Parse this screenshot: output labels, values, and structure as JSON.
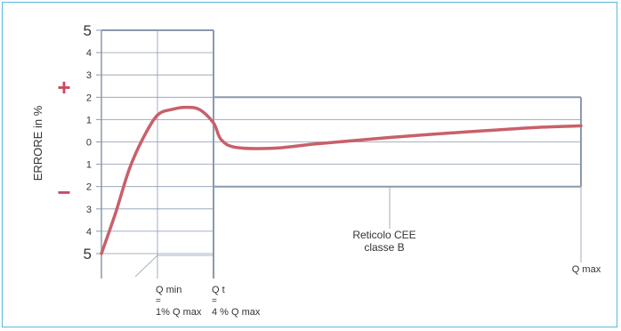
{
  "colors": {
    "frame_border": "#5bb8dc",
    "grid_line": "#8a9aad",
    "curve": "#c8606a",
    "plus_minus": "#c84a63",
    "text": "#333333"
  },
  "chart_data": {
    "type": "line",
    "ylabel": "ERRORE in %",
    "ylim": [
      -5,
      5
    ],
    "y_tick_labels": [
      {
        "value": 5,
        "label": "5"
      },
      {
        "value": 4,
        "label": "4"
      },
      {
        "value": 3,
        "label": "3"
      },
      {
        "value": 2,
        "label": "2"
      },
      {
        "value": 1,
        "label": "1"
      },
      {
        "value": 0,
        "label": "0"
      },
      {
        "value": -1,
        "label": "1"
      },
      {
        "value": -2,
        "label": "2"
      },
      {
        "value": -3,
        "label": "3"
      },
      {
        "value": -4,
        "label": "4"
      },
      {
        "value": -5,
        "label": "5"
      }
    ],
    "sign_plus": "+",
    "sign_minus": "−",
    "x_annotations": {
      "qmin": [
        "Q min",
        "=",
        "1% Q max"
      ],
      "qt": [
        "Q t",
        "=",
        "4 % Q max"
      ],
      "qmax": "Q max"
    },
    "envelope_note": [
      "Reticolo CEE",
      "classe B"
    ],
    "tolerance_band": {
      "low_flow": {
        "x_from": 0,
        "x_to": 4,
        "y_min": -5,
        "y_max": 5
      },
      "high_flow": {
        "x_from": 4,
        "x_to": 100,
        "y_min": -2,
        "y_max": 2
      }
    },
    "grid": true,
    "series": [
      {
        "points": [
          [
            0,
            -5.0
          ],
          [
            0.5,
            -3.2
          ],
          [
            1.0,
            -1.2
          ],
          [
            1.5,
            0.2
          ],
          [
            2.0,
            1.2
          ],
          [
            2.5,
            1.45
          ],
          [
            3.0,
            1.55
          ],
          [
            3.5,
            1.45
          ],
          [
            4.0,
            0.85
          ],
          [
            6,
            0.1
          ],
          [
            10,
            -0.25
          ],
          [
            20,
            -0.28
          ],
          [
            30,
            -0.1
          ],
          [
            40,
            0.05
          ],
          [
            50,
            0.2
          ],
          [
            60,
            0.33
          ],
          [
            70,
            0.45
          ],
          [
            80,
            0.56
          ],
          [
            90,
            0.66
          ],
          [
            100,
            0.72
          ]
        ]
      }
    ]
  }
}
